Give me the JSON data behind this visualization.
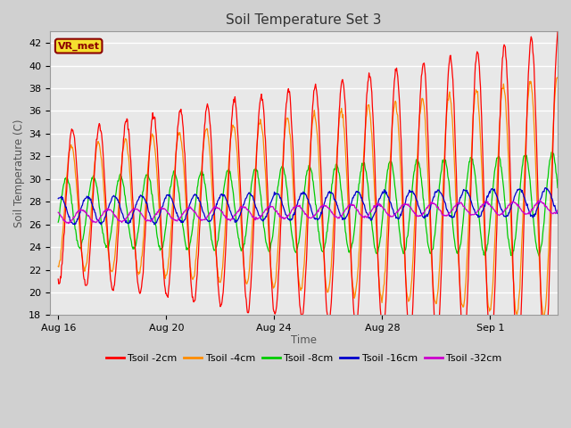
{
  "title": "Soil Temperature Set 3",
  "xlabel": "Time",
  "ylabel": "Soil Temperature (C)",
  "ylim": [
    18,
    43
  ],
  "yticks": [
    18,
    20,
    22,
    24,
    26,
    28,
    30,
    32,
    34,
    36,
    38,
    40,
    42
  ],
  "fig_bg_color": "#d0d0d0",
  "plot_bg_color": "#e8e8e8",
  "grid_color": "#ffffff",
  "annotation_text": "VR_met",
  "annotation_color": "#8B0000",
  "annotation_bg": "#f5e030",
  "series_colors": {
    "2cm": "#ff0000",
    "4cm": "#ff8c00",
    "8cm": "#00cc00",
    "16cm": "#0000cc",
    "32cm": "#cc00cc"
  },
  "legend_labels": [
    "Tsoil -2cm",
    "Tsoil -4cm",
    "Tsoil -8cm",
    "Tsoil -16cm",
    "Tsoil -32cm"
  ],
  "xtick_labels": [
    "Aug 16",
    "Aug 20",
    "Aug 24",
    "Aug 28",
    "Sep 1"
  ],
  "n_days": 18.5
}
